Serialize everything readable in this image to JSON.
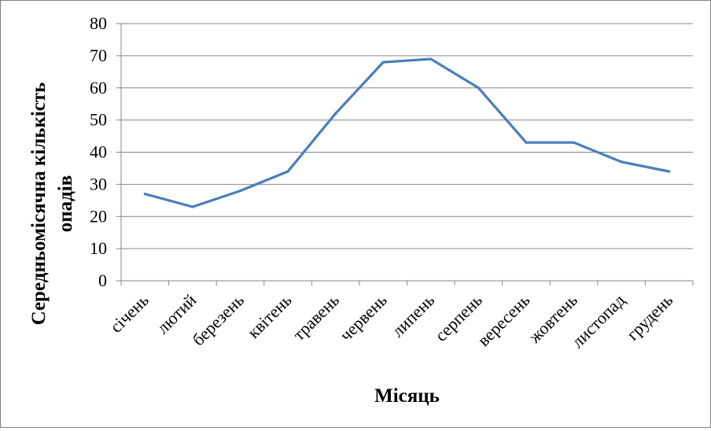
{
  "chart_data": {
    "type": "line",
    "title": "",
    "xlabel": "Місяць",
    "ylabel": [
      "Середньомісячна кількість",
      "опадів"
    ],
    "categories": [
      "січень",
      "лютий",
      "березень",
      "квітень",
      "травень",
      "червень",
      "липень",
      "серпень",
      "вересень",
      "жовтень",
      "листопад",
      "грудень"
    ],
    "series": [
      {
        "values": [
          27,
          23,
          28,
          34,
          52,
          68,
          69,
          60,
          43,
          43,
          37,
          34
        ]
      }
    ],
    "ylim": [
      0,
      80
    ],
    "yticks": [
      0,
      10,
      20,
      30,
      40,
      50,
      60,
      70,
      80
    ],
    "grid": true,
    "legend": "none",
    "colors": {
      "line": "#4a7ebb",
      "grid": "#868686",
      "axis": "#868686"
    }
  }
}
